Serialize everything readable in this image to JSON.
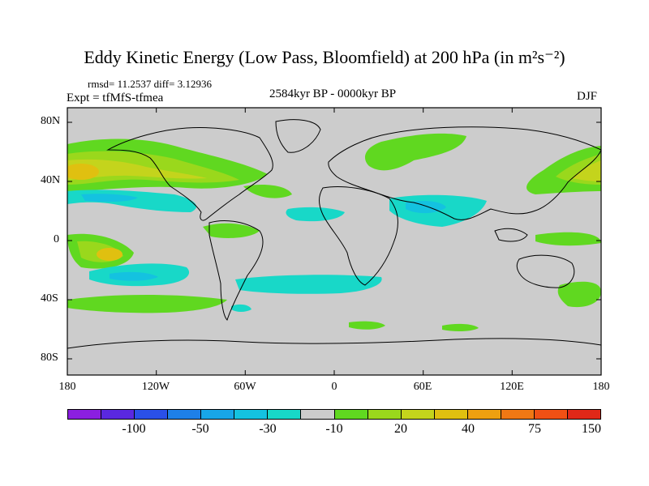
{
  "title": "Eddy Kinetic Energy (Low Pass, Bloomfield) at 200 hPa (in m²s⁻²)",
  "stats": "rmsd= 11.2537 diff= 3.12936",
  "experiment": "Expt = tfMfS-tfmea",
  "period": "2584kyr BP - 0000kyr BP",
  "season": "DJF",
  "lat_labels": [
    "80N",
    "40N",
    "0",
    "40S",
    "80S"
  ],
  "lon_labels": [
    "180",
    "120W",
    "60W",
    "0",
    "60E",
    "120E",
    "180"
  ],
  "colorbar": {
    "labels": [
      "-100",
      "-50",
      "-30",
      "-10",
      "20",
      "40",
      "75",
      "150"
    ],
    "colors": [
      "#8b1fe0",
      "#5a28e0",
      "#2a50e8",
      "#1e80e8",
      "#18a6e8",
      "#14c2e0",
      "#18d8c8",
      "#cccccc",
      "#60d820",
      "#9ad81c",
      "#c4d41c",
      "#e0c010",
      "#eea010",
      "#f07814",
      "#f05014",
      "#e02818"
    ]
  },
  "map": {
    "land_color": "#cccccc",
    "projection": "cylindrical equidistant",
    "lon_range": [
      -180,
      180
    ],
    "lat_range": [
      -90,
      90
    ]
  }
}
